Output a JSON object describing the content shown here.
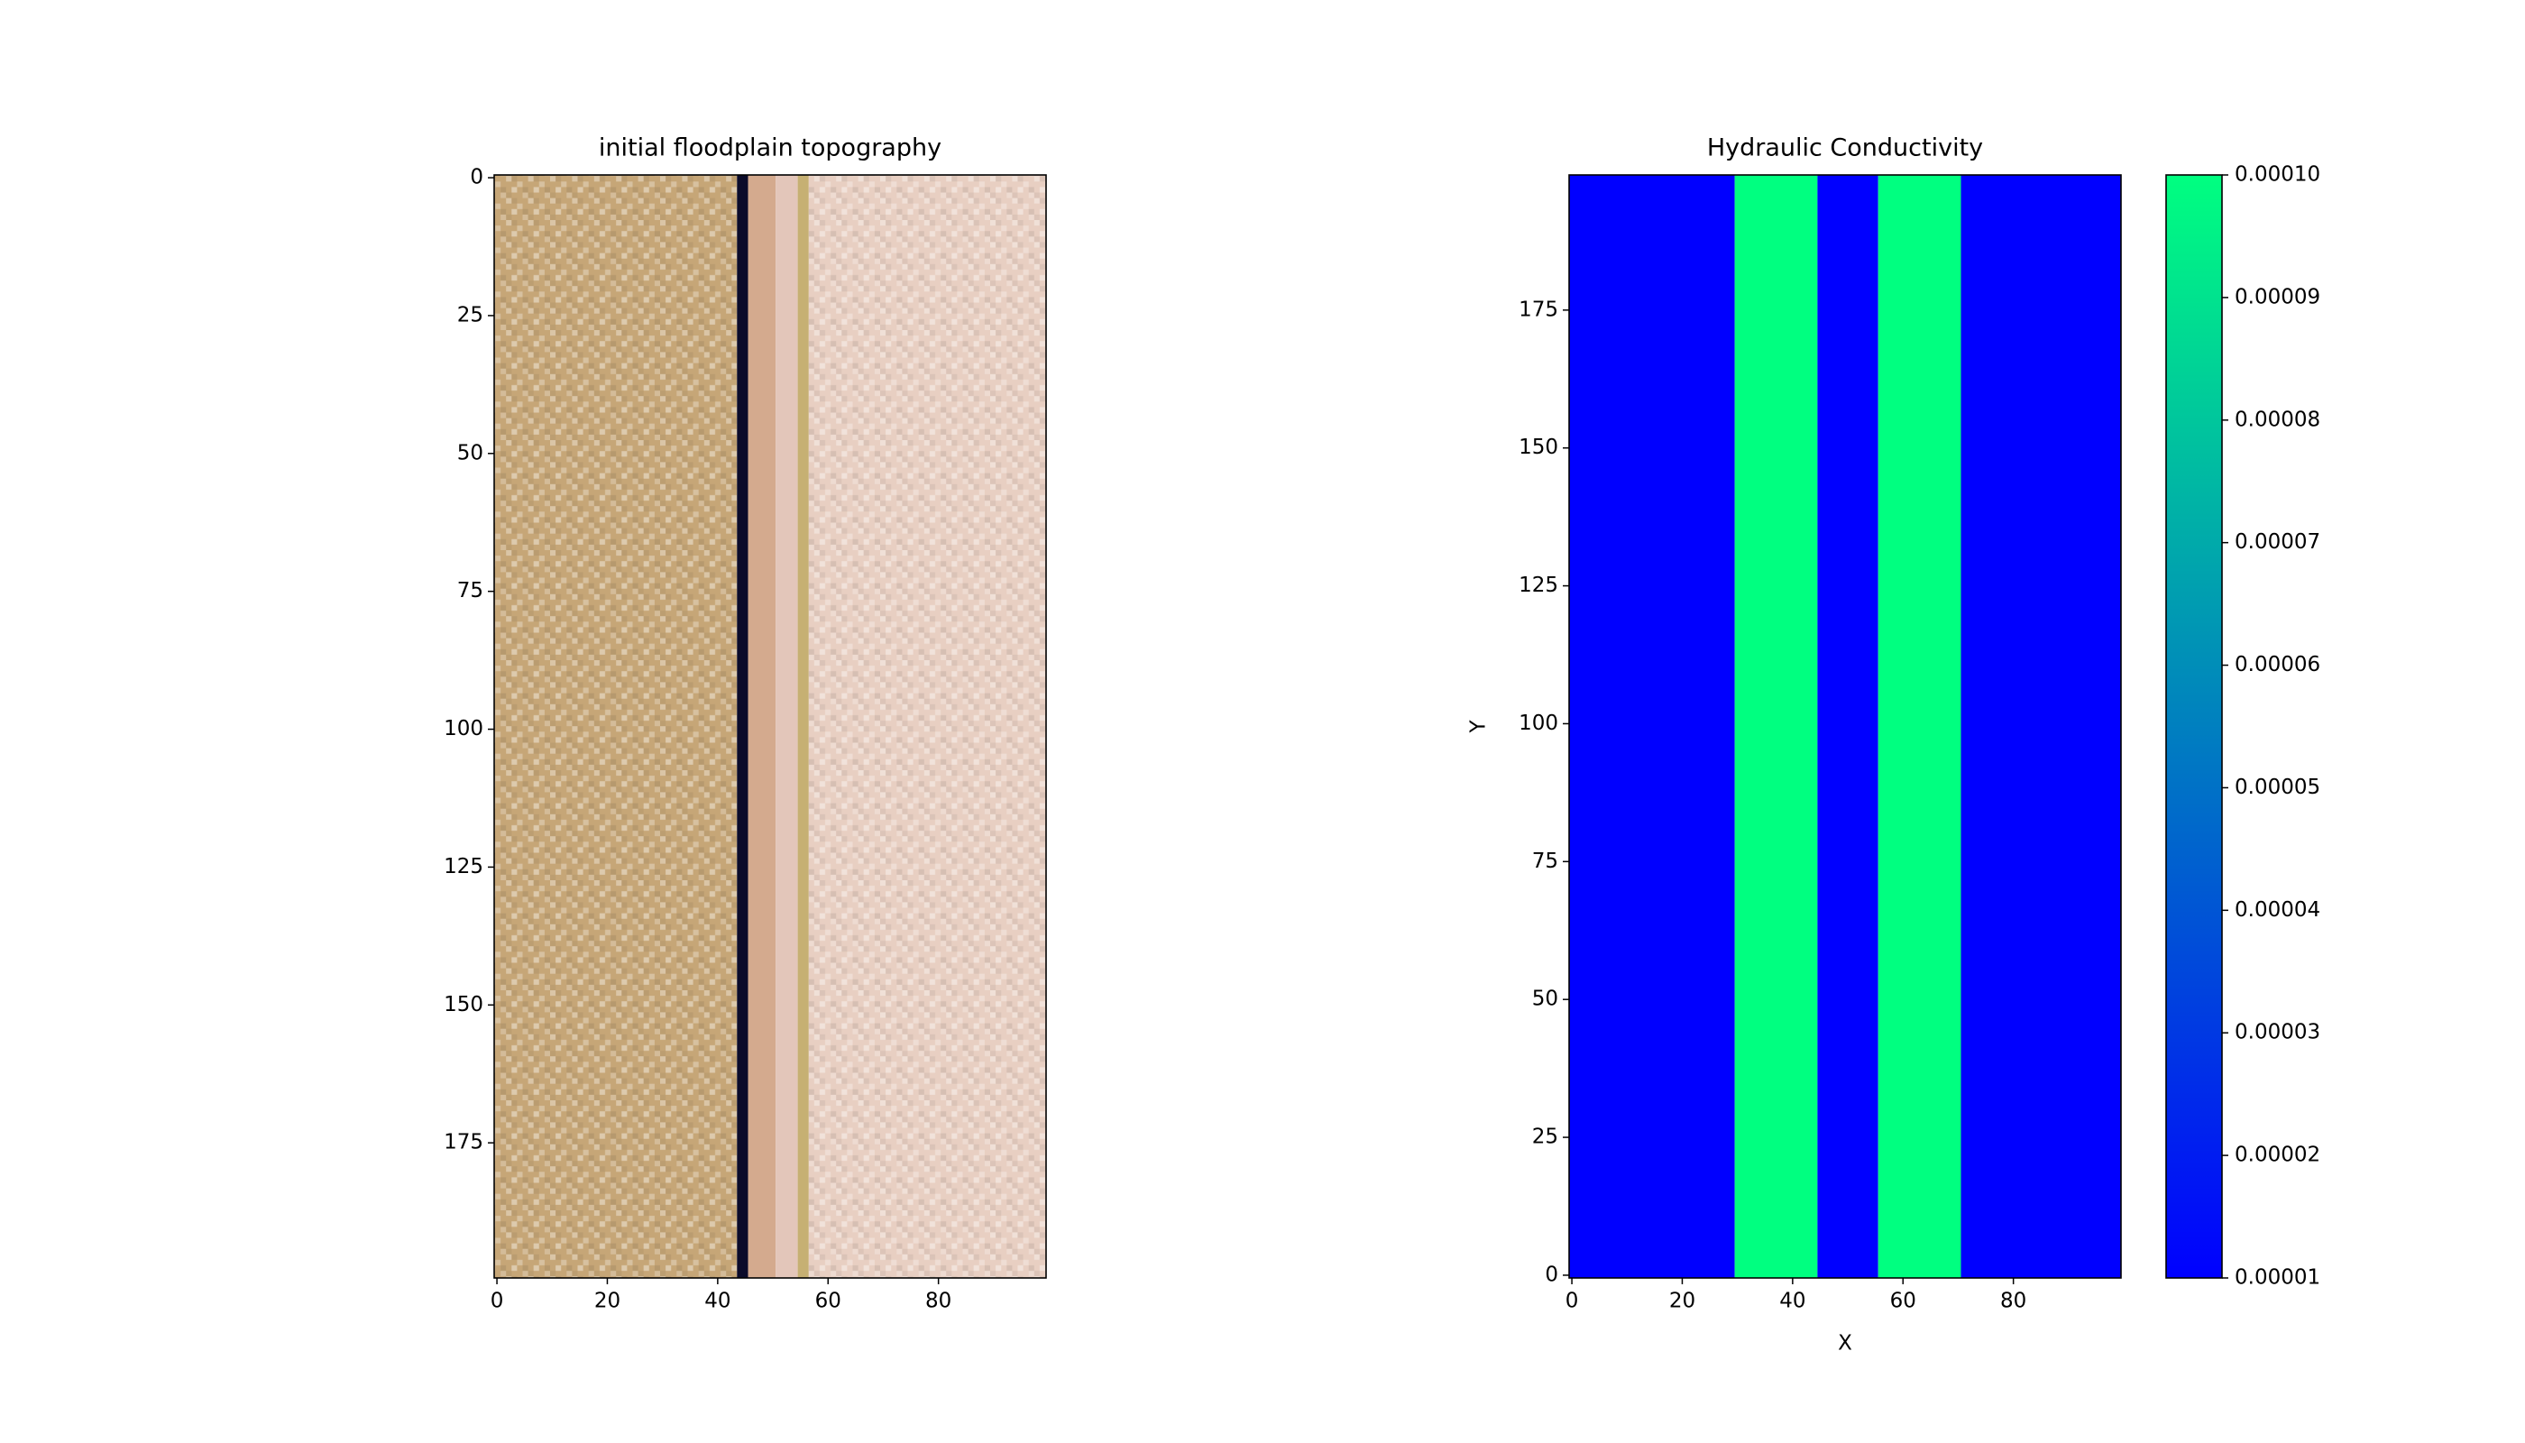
{
  "chart_data": [
    {
      "type": "image",
      "title": "initial floodplain topography",
      "columns": [
        {
          "x": [
            -0.5,
            43.5
          ],
          "color": "#c6a677",
          "textured": true
        },
        {
          "x": [
            43.5,
            45.5
          ],
          "color": "#0b0b2a",
          "textured": false
        },
        {
          "x": [
            45.5,
            50.5
          ],
          "color": "#d4aa8e",
          "textured": false
        },
        {
          "x": [
            50.5,
            54.5
          ],
          "color": "#e3c6ba",
          "textured": false
        },
        {
          "x": [
            54.5,
            56.5
          ],
          "color": "#c6b073",
          "textured": false
        },
        {
          "x": [
            56.5,
            99.5
          ],
          "color": "#e8cfc2",
          "textured": true
        }
      ],
      "xlim": [
        -0.5,
        99.5
      ],
      "ylim": [
        199.5,
        -0.5
      ],
      "xticks": [
        0,
        20,
        40,
        60,
        80
      ],
      "yticks": [
        0,
        25,
        50,
        75,
        100,
        125,
        150,
        175
      ]
    },
    {
      "type": "heatmap",
      "title": "Hydraulic Conductivity",
      "x_label": "X",
      "y_label": "Y",
      "columns": [
        {
          "x": [
            -0.5,
            29.5
          ],
          "value": 1e-05
        },
        {
          "x": [
            29.5,
            44.5
          ],
          "value": 0.0001
        },
        {
          "x": [
            44.5,
            55.5
          ],
          "value": 1e-05
        },
        {
          "x": [
            55.5,
            70.5
          ],
          "value": 0.0001
        },
        {
          "x": [
            70.5,
            99.5
          ],
          "value": 1e-05
        }
      ],
      "colormap": [
        "#0000ff",
        "#00ff80"
      ],
      "clim": [
        1e-05,
        0.0001
      ],
      "cticks": [
        {
          "value": 1e-05,
          "label": "0.00001"
        },
        {
          "value": 2e-05,
          "label": "0.00002"
        },
        {
          "value": 3e-05,
          "label": "0.00003"
        },
        {
          "value": 4e-05,
          "label": "0.00004"
        },
        {
          "value": 5e-05,
          "label": "0.00005"
        },
        {
          "value": 6e-05,
          "label": "0.00006"
        },
        {
          "value": 7e-05,
          "label": "0.00007"
        },
        {
          "value": 8e-05,
          "label": "0.00008"
        },
        {
          "value": 9e-05,
          "label": "0.00009"
        },
        {
          "value": 0.0001,
          "label": "0.00010"
        }
      ],
      "xlim": [
        -0.5,
        99.5
      ],
      "ylim": [
        -0.5,
        199.5
      ],
      "xticks": [
        0,
        20,
        40,
        60,
        80
      ],
      "yticks": [
        0,
        25,
        50,
        75,
        100,
        125,
        150,
        175
      ]
    }
  ]
}
